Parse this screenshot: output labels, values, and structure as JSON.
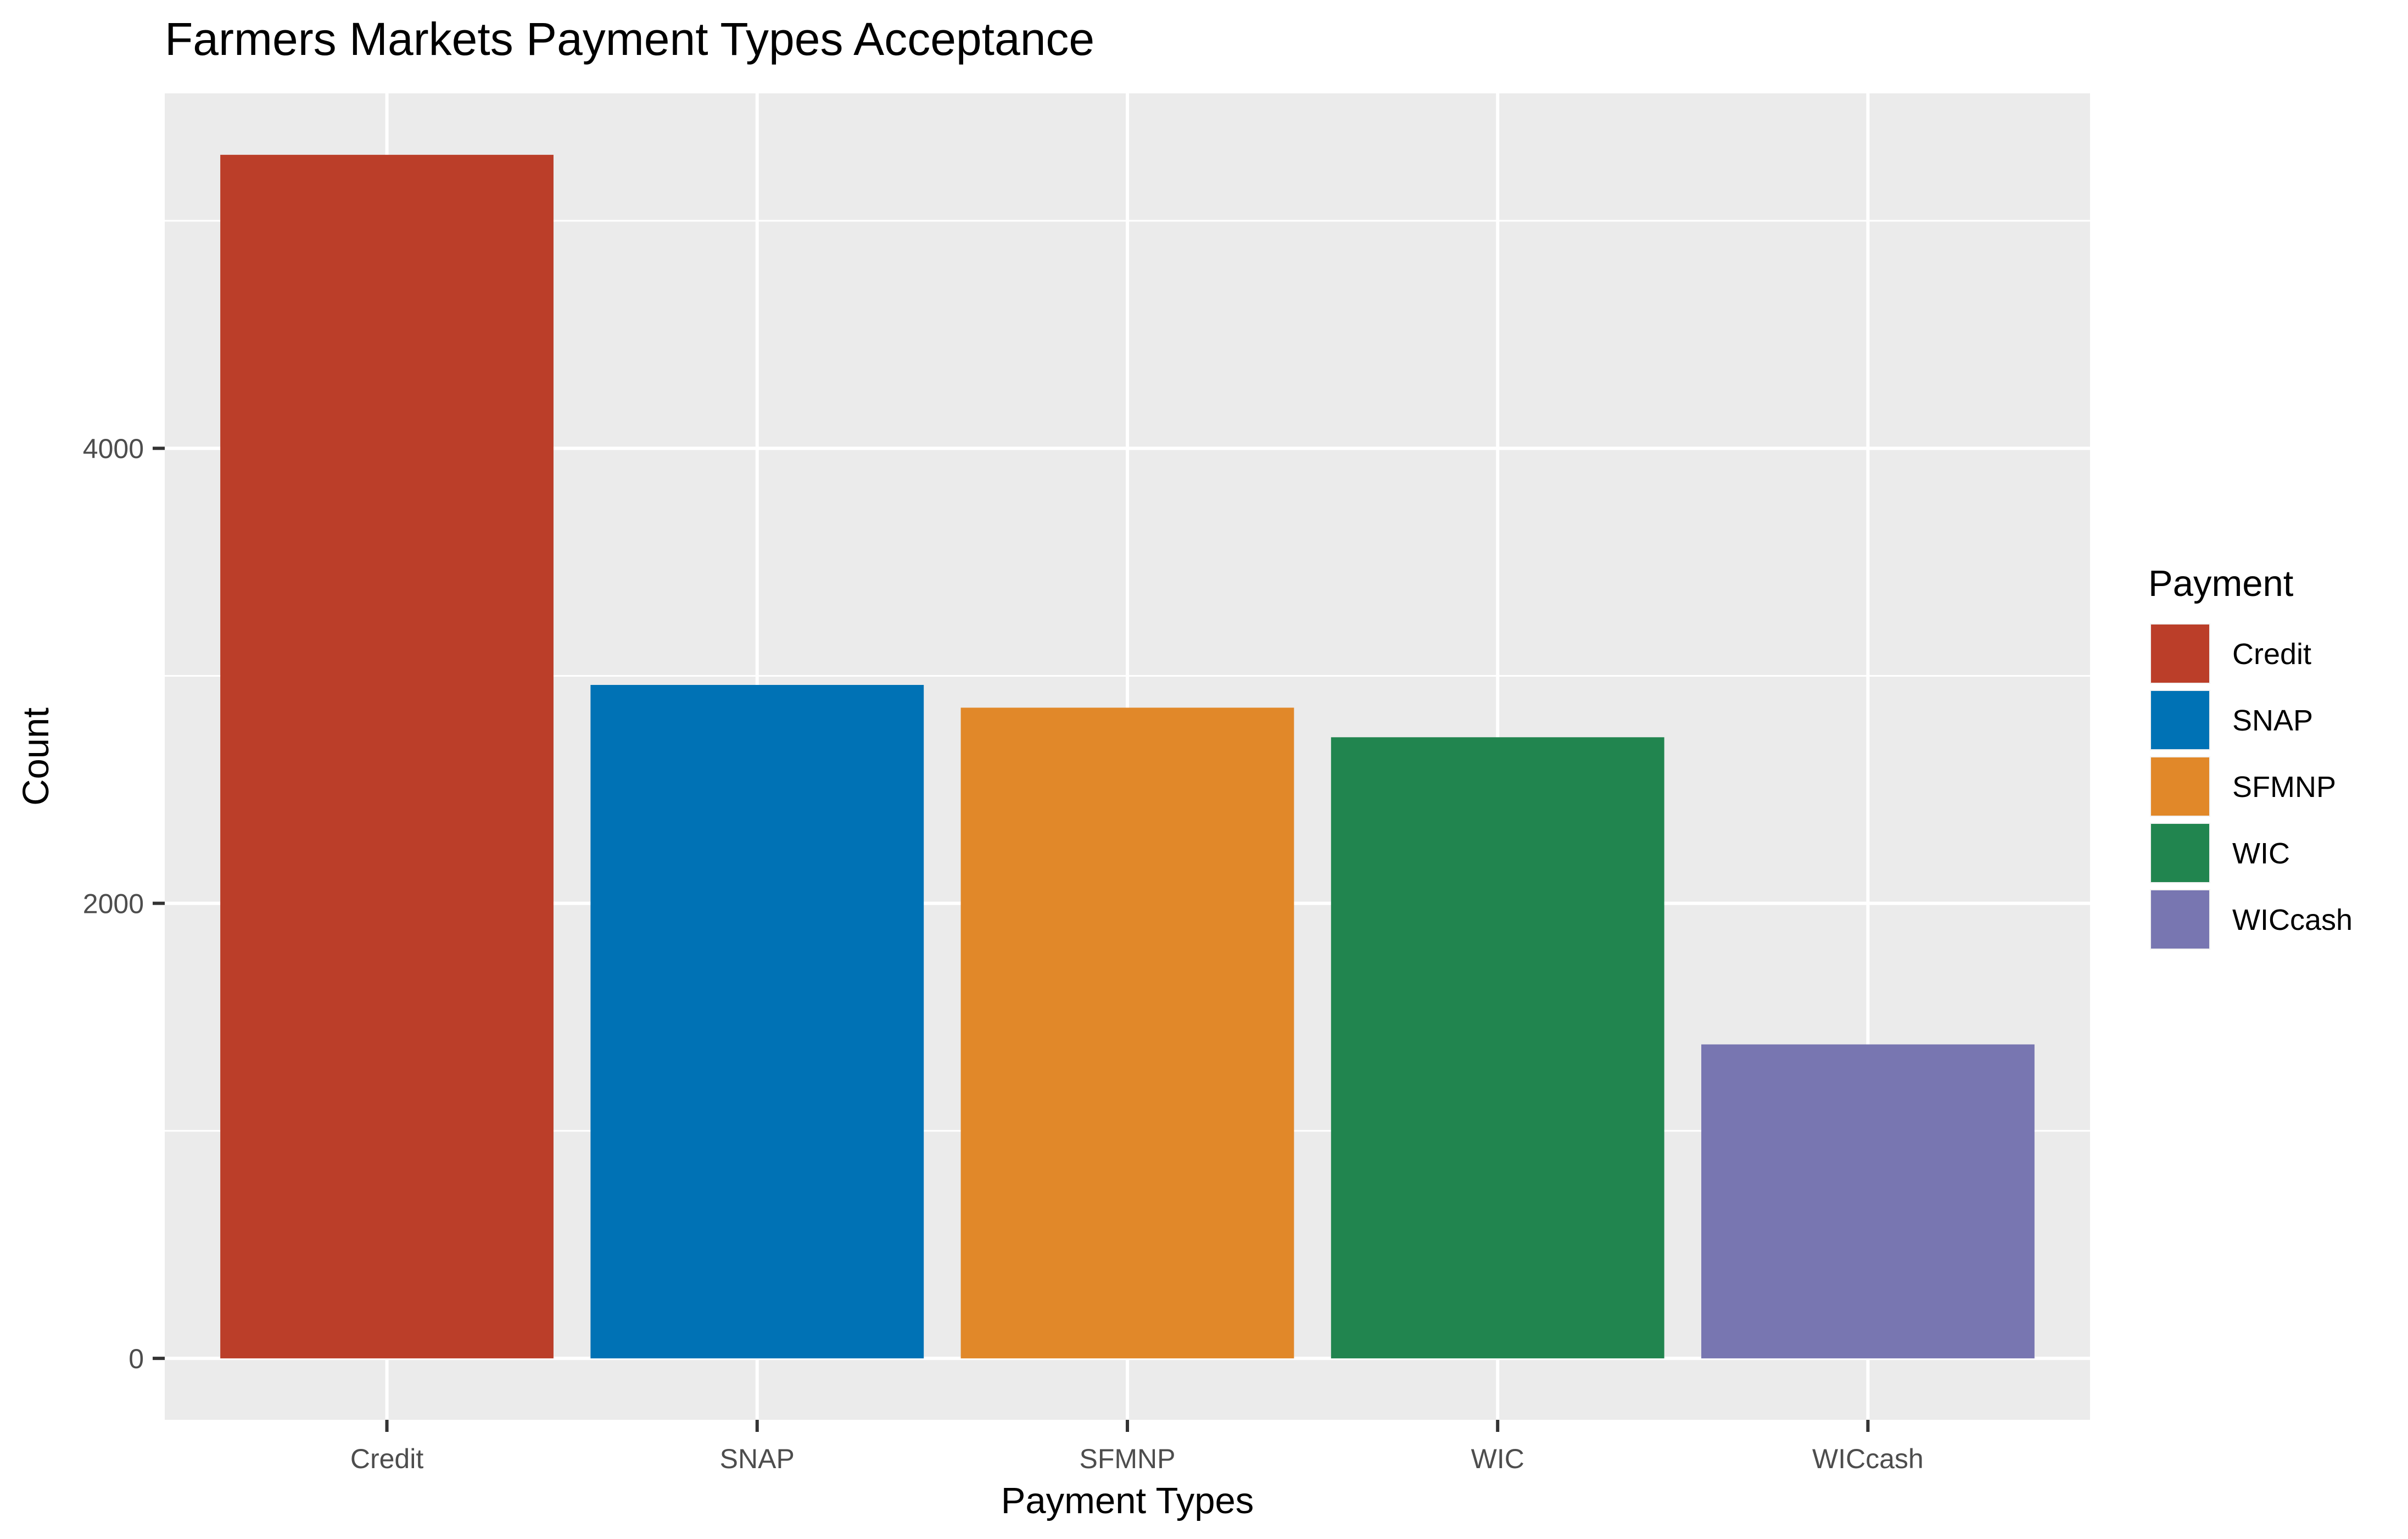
{
  "chart_data": {
    "type": "bar",
    "title": "Farmers Markets Payment Types Acceptance",
    "xlabel": "Payment Types",
    "ylabel": "Count",
    "categories": [
      "Credit",
      "SNAP",
      "SFMNP",
      "WIC",
      "WICcash"
    ],
    "values": [
      5290,
      2960,
      2860,
      2730,
      1380
    ],
    "ylim": [
      -270,
      5560
    ],
    "yticks": [
      0,
      2000,
      4000
    ],
    "ytick_labels": [
      "0",
      "2000",
      "4000"
    ],
    "grid": true,
    "legend": {
      "title": "Payment",
      "position": "right",
      "entries": [
        "Credit",
        "SNAP",
        "SFMNP",
        "WIC",
        "WICcash"
      ]
    },
    "colors": {
      "Credit": "#BB3E29",
      "SNAP": "#0072B5",
      "SFMNP": "#E18829",
      "WIC": "#21854F",
      "WICcash": "#7876B1",
      "panel": "#EBEBEB",
      "grid": "#FFFFFF"
    }
  }
}
